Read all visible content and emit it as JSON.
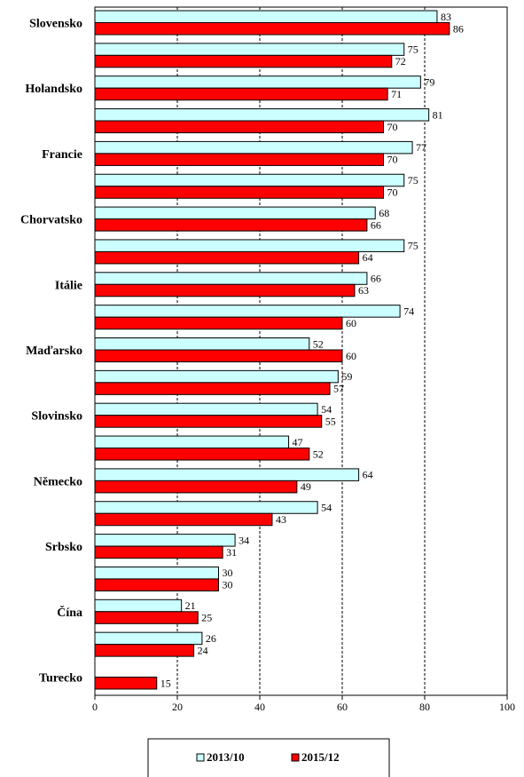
{
  "chart_data": {
    "type": "bar",
    "orientation": "horizontal",
    "categories": [
      "Slovensko",
      "",
      "Holandsko",
      "",
      "Francie",
      "",
      "Chorvatsko",
      "",
      "Itálie",
      "",
      "Maďarsko",
      "",
      "Slovinsko",
      "",
      "Německo",
      "",
      "Srbsko",
      "",
      "Čína",
      "",
      "Turecko"
    ],
    "series": [
      {
        "name": "2013/10",
        "color": "#ccffff",
        "values": [
          83,
          75,
          79,
          81,
          77,
          75,
          68,
          75,
          66,
          74,
          52,
          59,
          54,
          47,
          64,
          54,
          34,
          30,
          21,
          26,
          null
        ]
      },
      {
        "name": "2015/12",
        "color": "#ff0000",
        "values": [
          86,
          72,
          71,
          70,
          70,
          70,
          66,
          64,
          63,
          60,
          60,
          57,
          55,
          52,
          49,
          43,
          31,
          30,
          25,
          24,
          15
        ]
      }
    ],
    "xlim": [
      0,
      100
    ],
    "xticks": [
      0,
      20,
      40,
      60,
      80,
      100
    ],
    "gridlines": "vertical-dashed",
    "legend": "bottom",
    "data_labels": true
  }
}
